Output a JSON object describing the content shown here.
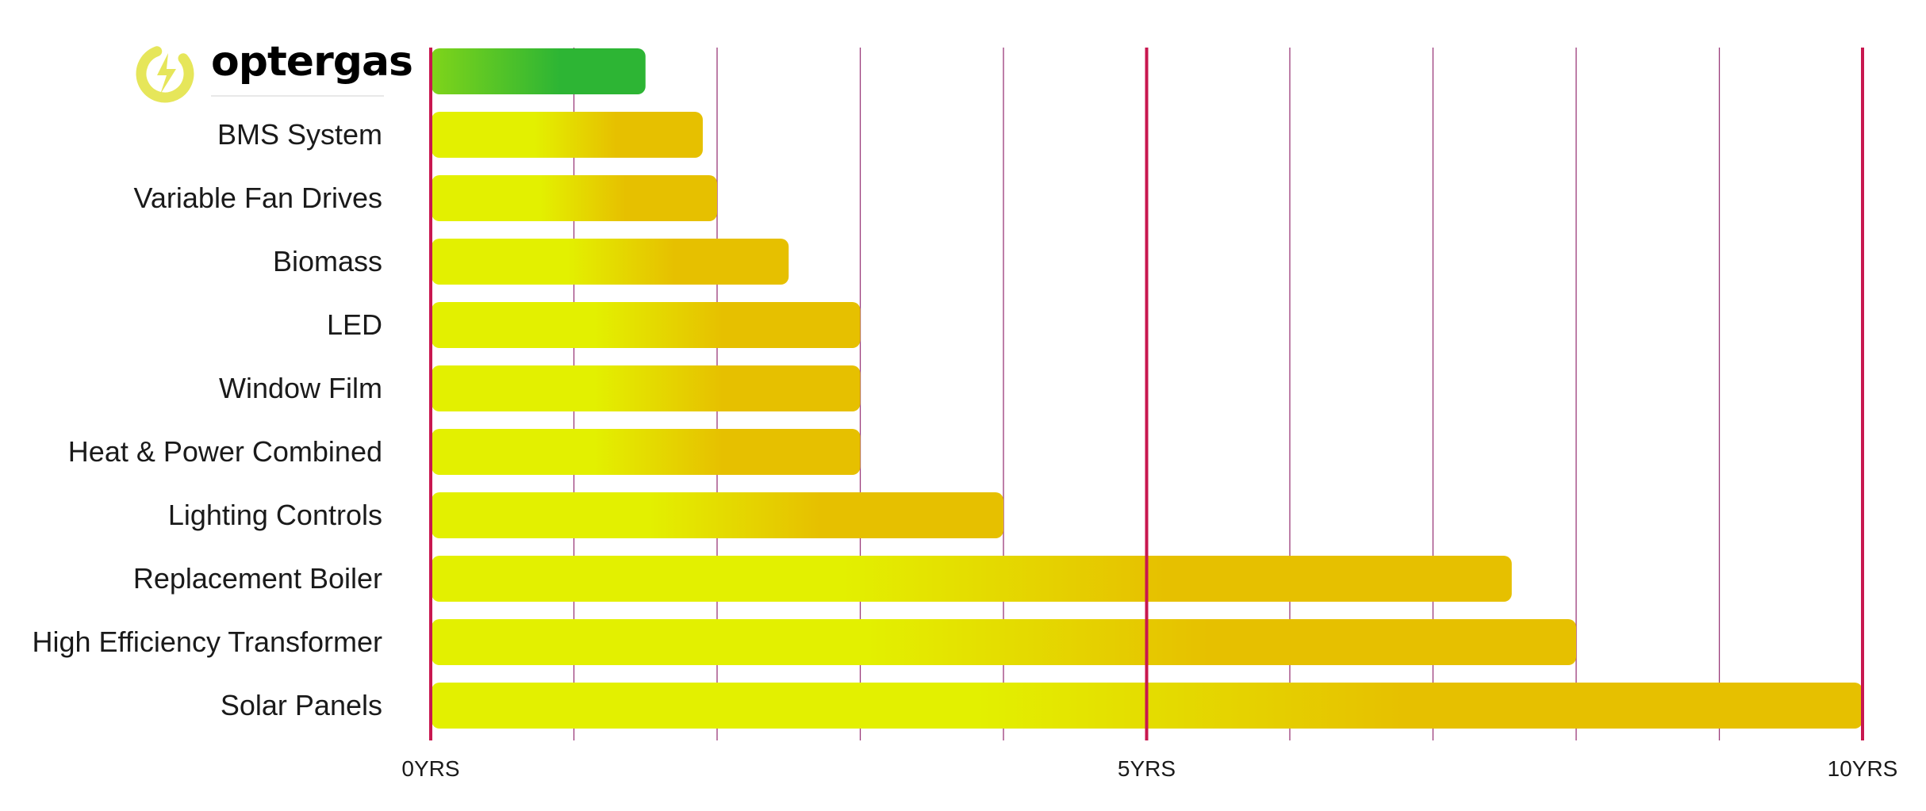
{
  "brand": {
    "name": "optergas",
    "logo_color": "#e6e65a"
  },
  "chart_data": {
    "type": "bar",
    "orientation": "horizontal",
    "title": "",
    "xlabel": "",
    "ylabel": "",
    "xlim": [
      0,
      10
    ],
    "categories": [
      "optergas",
      "BMS System",
      "Variable Fan Drives",
      "Biomass",
      "LED",
      "Window Film",
      "Heat & Power Combined",
      "Lighting Controls",
      "Replacement Boiler",
      "High Efficiency Transformer",
      "Solar Panels"
    ],
    "values": [
      1.5,
      1.9,
      2.0,
      2.5,
      3.0,
      3.0,
      3.0,
      4.0,
      7.55,
      8.0,
      10.0
    ],
    "tick_labels": [
      {
        "value": 0,
        "label": "0YRS"
      },
      {
        "value": 5,
        "label": "5YRS"
      },
      {
        "value": 10,
        "label": "10YRS"
      }
    ],
    "minor_gridlines": [
      1,
      2,
      3,
      4,
      6,
      7,
      8,
      9
    ],
    "major_gridlines": [
      0,
      5,
      10
    ],
    "grid": true,
    "legend": "none",
    "colors": {
      "highlight_start": "#7fd41a",
      "highlight_end": "#2db534",
      "bar_start": "#e3f000",
      "bar_end": "#e6c000",
      "major_grid": "#c8174f",
      "minor_grid": "#9a3a7a"
    }
  }
}
